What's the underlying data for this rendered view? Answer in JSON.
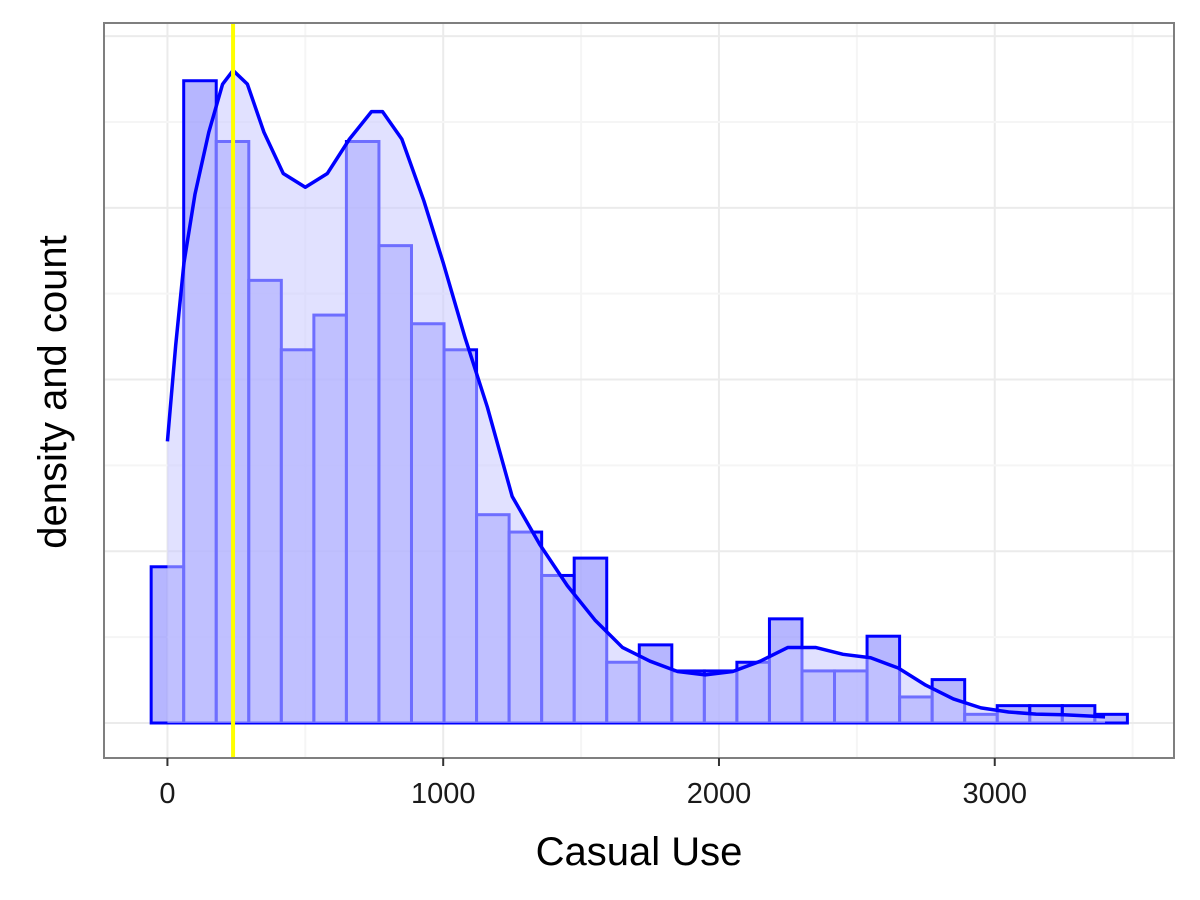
{
  "chart_data": {
    "type": "bar",
    "subtype": "histogram with density overlay",
    "title": "",
    "xlabel": "Casual Use",
    "ylabel": "density and count",
    "xlim": [
      -230,
      3650
    ],
    "ylim": [
      0,
      1.07
    ],
    "x_ticks": [
      0,
      1000,
      2000,
      3000
    ],
    "x_tick_labels": [
      "0",
      "1000",
      "2000",
      "3000"
    ],
    "y_tick_labels_shown": false,
    "grid": true,
    "legend": "none",
    "colors": {
      "bar_fill": "#8f8fff",
      "bar_outline": "#0000ff",
      "density_fill": "#c8c8ff",
      "density_line": "#0000ff",
      "vline": "#ffff00",
      "panel_border": "#7f7f7f",
      "grid": "#ebebeb"
    },
    "bins": {
      "start": -59,
      "width": 118,
      "counts": [
        18,
        74,
        67,
        51,
        43,
        47,
        67,
        55,
        46,
        43,
        24,
        22,
        17,
        19,
        7,
        9,
        6,
        6,
        7,
        12,
        6,
        6,
        10,
        3,
        5,
        1,
        2,
        2,
        2,
        1
      ]
    },
    "density_curve": {
      "x": [
        0,
        30,
        60,
        100,
        150,
        200,
        238,
        290,
        350,
        420,
        500,
        580,
        660,
        740,
        780,
        850,
        930,
        1000,
        1080,
        1160,
        1250,
        1350,
        1450,
        1550,
        1650,
        1750,
        1850,
        1950,
        2050,
        2150,
        2250,
        2350,
        2450,
        2550,
        2650,
        2750,
        2850,
        2950,
        3050,
        3150,
        3250,
        3350,
        3400
      ],
      "y": [
        0.41,
        0.55,
        0.67,
        0.77,
        0.86,
        0.93,
        0.95,
        0.93,
        0.86,
        0.8,
        0.78,
        0.8,
        0.85,
        0.89,
        0.89,
        0.85,
        0.76,
        0.67,
        0.56,
        0.46,
        0.33,
        0.26,
        0.2,
        0.15,
        0.11,
        0.09,
        0.075,
        0.07,
        0.075,
        0.09,
        0.11,
        0.11,
        0.1,
        0.095,
        0.08,
        0.055,
        0.035,
        0.022,
        0.016,
        0.013,
        0.012,
        0.01,
        0.009
      ]
    },
    "vline_x": 238
  }
}
